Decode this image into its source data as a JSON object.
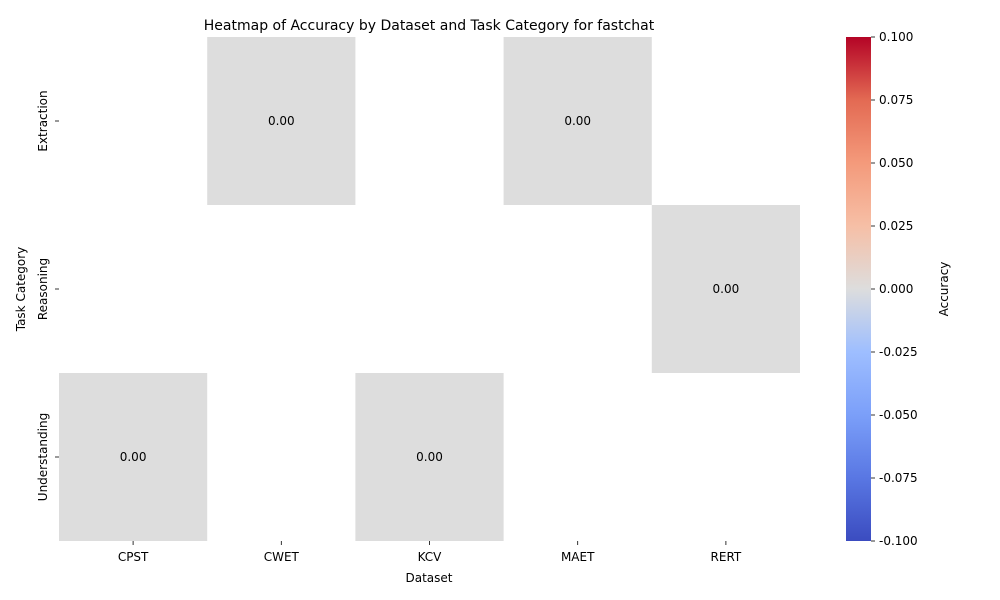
{
  "chart_data": {
    "type": "heatmap",
    "title": "Heatmap of Accuracy by Dataset and Task Category for fastchat",
    "xlabel": "Dataset",
    "ylabel": "Task Category",
    "x_categories": [
      "CPST",
      "CWET",
      "KCV",
      "MAET",
      "RERT"
    ],
    "y_categories": [
      "Extraction",
      "Reasoning",
      "Understanding"
    ],
    "cells": [
      {
        "x": "CWET",
        "y": "Extraction",
        "value": 0.0,
        "label": "0.00"
      },
      {
        "x": "MAET",
        "y": "Extraction",
        "value": 0.0,
        "label": "0.00"
      },
      {
        "x": "RERT",
        "y": "Reasoning",
        "value": 0.0,
        "label": "0.00"
      },
      {
        "x": "CPST",
        "y": "Understanding",
        "value": 0.0,
        "label": "0.00"
      },
      {
        "x": "KCV",
        "y": "Understanding",
        "value": 0.0,
        "label": "0.00"
      }
    ],
    "colorbar": {
      "label": "Accuracy",
      "colormap": "coolwarm",
      "range": [
        -0.1,
        0.1
      ],
      "ticks": [
        "-0.100",
        "-0.075",
        "-0.050",
        "-0.025",
        "0.000",
        "0.025",
        "0.050",
        "0.075",
        "0.100"
      ]
    },
    "missing_cells": "blank"
  }
}
